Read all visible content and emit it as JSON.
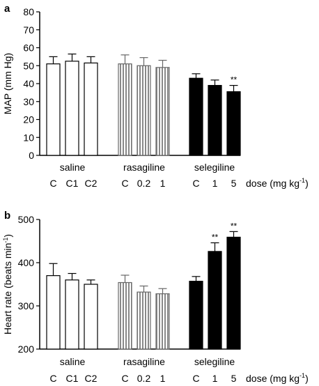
{
  "chart_data": [
    {
      "type": "bar",
      "panel_label": "a",
      "ylabel": "MAP (mm Hg)",
      "ylim": [
        0,
        80
      ],
      "yticks": [
        "0",
        "10",
        "20",
        "30",
        "40",
        "50",
        "60",
        "70",
        "80"
      ],
      "groups": [
        "saline",
        "rasagiline",
        "selegiline"
      ],
      "dose_label_html": "dose (mg kg",
      "dose_exp": "-1",
      "dose_close": ")",
      "bars": [
        {
          "group": "saline",
          "label": "C",
          "value": 51,
          "error": 4,
          "style": "open"
        },
        {
          "group": "saline",
          "label": "C1",
          "value": 52.5,
          "error": 4,
          "style": "open"
        },
        {
          "group": "saline",
          "label": "C2",
          "value": 51.5,
          "error": 3.5,
          "style": "open"
        },
        {
          "group": "rasagiline",
          "label": "C",
          "value": 51,
          "error": 5,
          "style": "striped"
        },
        {
          "group": "rasagiline",
          "label": "0.2",
          "value": 50,
          "error": 4.5,
          "style": "striped"
        },
        {
          "group": "rasagiline",
          "label": "1",
          "value": 49,
          "error": 4,
          "style": "striped"
        },
        {
          "group": "selegiline",
          "label": "C",
          "value": 43,
          "error": 2.5,
          "style": "solid"
        },
        {
          "group": "selegiline",
          "label": "1",
          "value": 39,
          "error": 3,
          "style": "solid"
        },
        {
          "group": "selegiline",
          "label": "5",
          "value": 35.5,
          "error": 3.5,
          "style": "solid",
          "annotation": "**"
        }
      ]
    },
    {
      "type": "bar",
      "panel_label": "b",
      "ylabel": "Heart rate (beats min",
      "ylabel_exp": "-1",
      "ylabel_close": ")",
      "ylim": [
        200,
        500
      ],
      "yticks": [
        "200",
        "300",
        "400",
        "500"
      ],
      "groups": [
        "saline",
        "rasagiline",
        "selegiline"
      ],
      "dose_label_html": "dose (mg kg",
      "dose_exp": "-1",
      "dose_close": ")",
      "bars": [
        {
          "group": "saline",
          "label": "C",
          "value": 370,
          "error": 28,
          "style": "open"
        },
        {
          "group": "saline",
          "label": "C1",
          "value": 360,
          "error": 15,
          "style": "open"
        },
        {
          "group": "saline",
          "label": "C2",
          "value": 350,
          "error": 10,
          "style": "open"
        },
        {
          "group": "rasagiline",
          "label": "C",
          "value": 354,
          "error": 17,
          "style": "striped"
        },
        {
          "group": "rasagiline",
          "label": "0.2",
          "value": 332,
          "error": 14,
          "style": "striped"
        },
        {
          "group": "rasagiline",
          "label": "1",
          "value": 328,
          "error": 12,
          "style": "striped"
        },
        {
          "group": "selegiline",
          "label": "C",
          "value": 357,
          "error": 11,
          "style": "solid"
        },
        {
          "group": "selegiline",
          "label": "1",
          "value": 426,
          "error": 20,
          "style": "solid",
          "annotation": "**"
        },
        {
          "group": "selegiline",
          "label": "5",
          "value": 459,
          "error": 13,
          "style": "solid",
          "annotation": "**"
        }
      ]
    }
  ]
}
